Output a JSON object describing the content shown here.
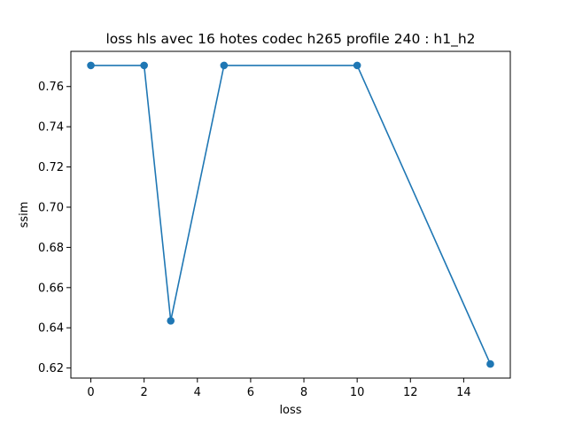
{
  "chart_data": {
    "type": "line",
    "title": "loss hls avec 16 hotes codec h265 profile 240 : h1_h2",
    "xlabel": "loss",
    "ylabel": "ssim",
    "xlim": [
      -0.75,
      15.75
    ],
    "ylim": [
      0.615,
      0.7775
    ],
    "xticks": [
      0,
      2,
      4,
      6,
      8,
      10,
      12,
      14
    ],
    "yticks": [
      0.62,
      0.64,
      0.66,
      0.68,
      0.7,
      0.72,
      0.74,
      0.76
    ],
    "xtick_labels": [
      "0",
      "2",
      "4",
      "6",
      "8",
      "10",
      "12",
      "14"
    ],
    "ytick_labels": [
      "0.62",
      "0.64",
      "0.66",
      "0.68",
      "0.70",
      "0.72",
      "0.74",
      "0.76"
    ],
    "grid": false,
    "series": [
      {
        "color": "#1f77b4",
        "marker": "circle",
        "x": [
          0,
          2,
          3,
          5,
          10,
          15
        ],
        "y": [
          0.7705,
          0.7705,
          0.6435,
          0.7705,
          0.7705,
          0.622
        ]
      }
    ]
  }
}
